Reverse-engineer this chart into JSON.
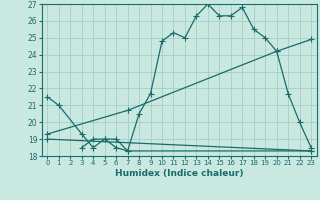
{
  "title": "",
  "xlabel": "Humidex (Indice chaleur)",
  "ylabel": "",
  "bg_color": "#c8e8e0",
  "line_color": "#1a6b6b",
  "grid_color": "#a0c8c0",
  "xlim": [
    -0.5,
    23.5
  ],
  "ylim": [
    18,
    27
  ],
  "xticks": [
    0,
    1,
    2,
    3,
    4,
    5,
    6,
    7,
    8,
    9,
    10,
    11,
    12,
    13,
    14,
    15,
    16,
    17,
    18,
    19,
    20,
    21,
    22,
    23
  ],
  "yticks": [
    18,
    19,
    20,
    21,
    22,
    23,
    24,
    25,
    26,
    27
  ],
  "line1_x": [
    0,
    1,
    3,
    4,
    5,
    6,
    7,
    8,
    9,
    10,
    11,
    12,
    13,
    14,
    15,
    16,
    17,
    18,
    19,
    20,
    21,
    22,
    23
  ],
  "line1_y": [
    21.5,
    21.0,
    19.3,
    18.5,
    19.0,
    19.0,
    18.3,
    20.5,
    21.7,
    24.8,
    25.3,
    25.0,
    26.3,
    27.0,
    26.3,
    26.3,
    26.8,
    25.5,
    25.0,
    24.2,
    21.7,
    20.0,
    18.5
  ],
  "line2_x": [
    3,
    4,
    5,
    6,
    7,
    23
  ],
  "line2_y": [
    18.5,
    19.0,
    19.0,
    18.5,
    18.3,
    18.3
  ],
  "line3_x": [
    0,
    7,
    20,
    23
  ],
  "line3_y": [
    19.3,
    20.7,
    24.2,
    24.9
  ],
  "line4_x": [
    0,
    23
  ],
  "line4_y": [
    19.0,
    18.3
  ],
  "marker": "+",
  "markersize": 4,
  "linewidth": 0.9
}
